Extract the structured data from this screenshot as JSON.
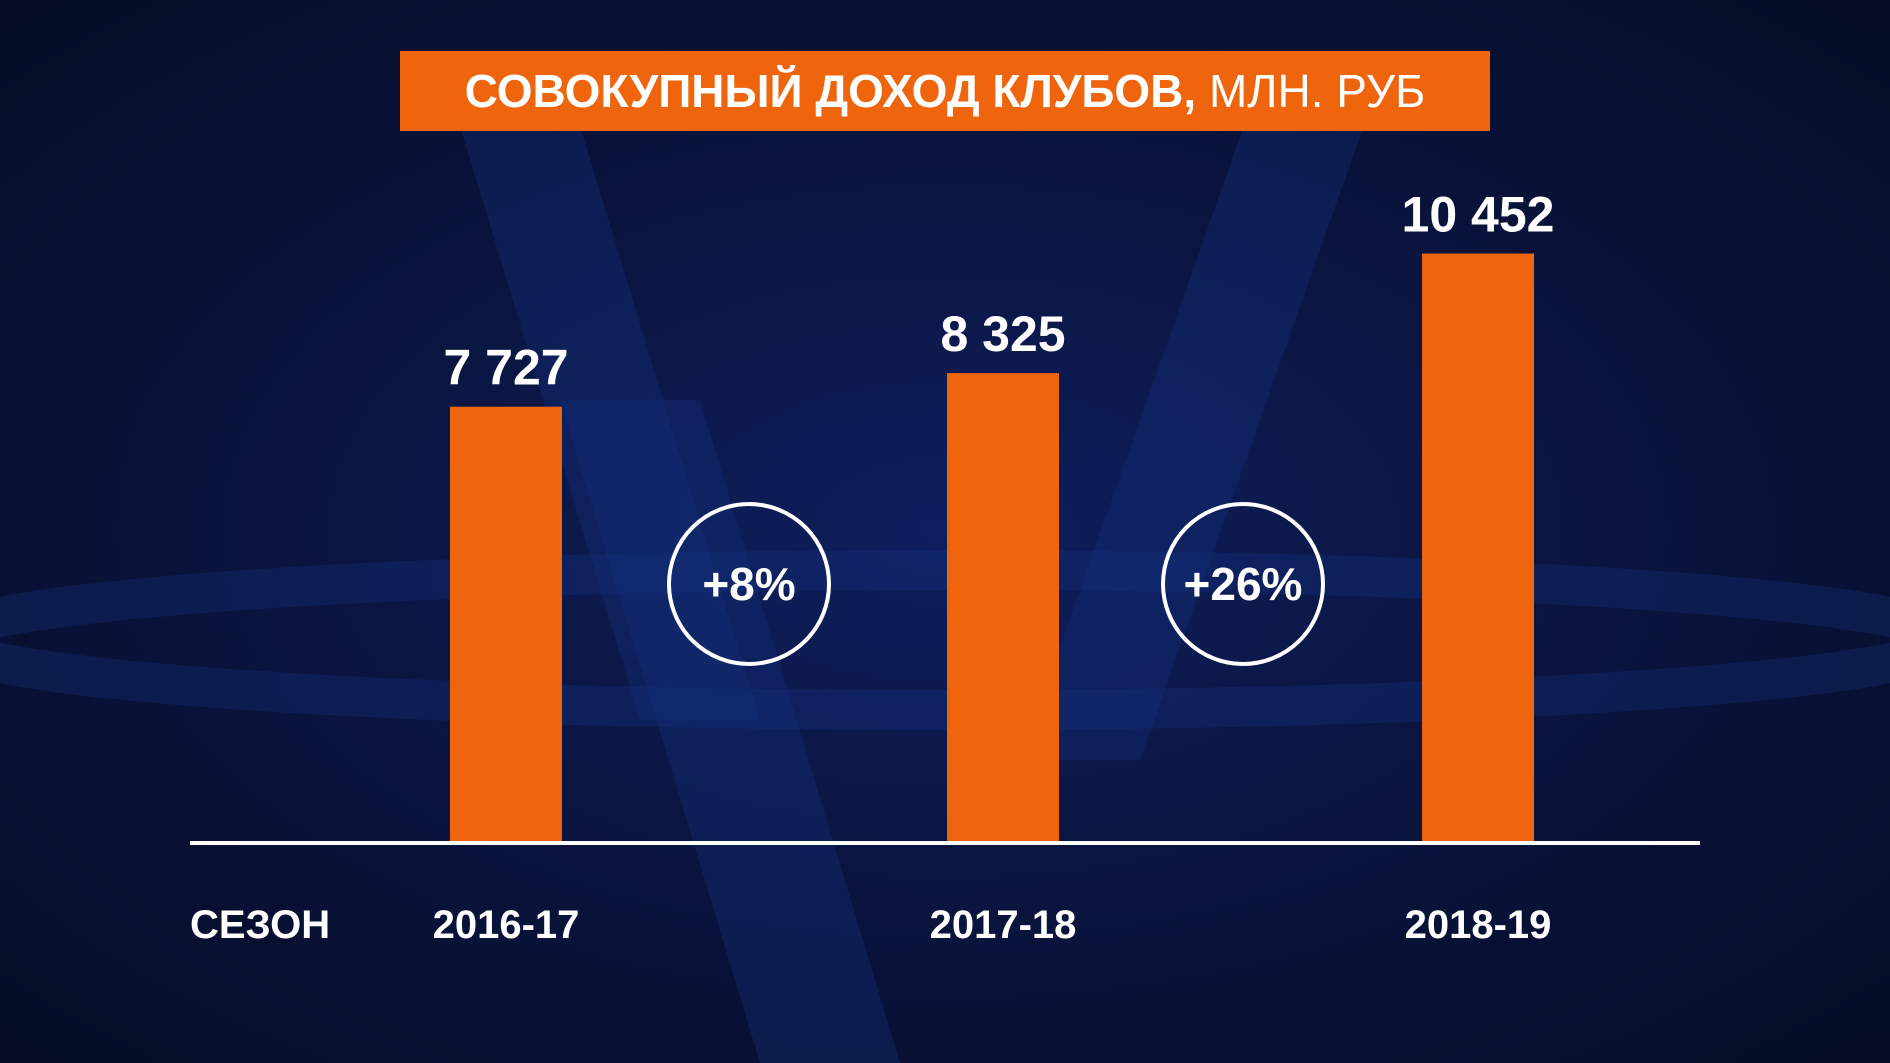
{
  "chart_data": {
    "type": "bar",
    "title": "СОВОКУПНЫЙ ДОХОД КЛУБОВ,",
    "title_unit": "МЛН. РУБ",
    "xlabel": "СЕЗОН",
    "categories": [
      "2016-17",
      "2017-18",
      "2018-19"
    ],
    "values": [
      7727,
      8325,
      10452
    ],
    "value_labels": [
      "7 727",
      "8 325",
      "10 452"
    ],
    "growth": [
      "+8%",
      "+26%"
    ],
    "ylim": [
      0,
      13700
    ],
    "grid": false,
    "colors": {
      "bar": "#ee650e",
      "axis": "#ffffff",
      "text": "#ffffff",
      "title_bg": "#ee650e"
    }
  }
}
